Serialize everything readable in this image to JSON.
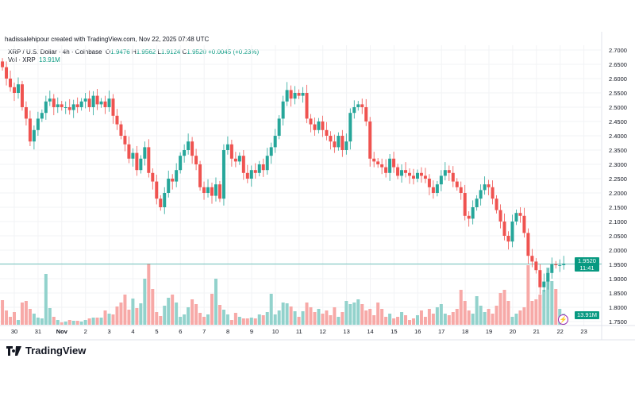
{
  "credit": "hadissalehipour created with TradingView.com, Nov 22, 2025 07:48 UTC",
  "legend": {
    "symbol": "XRP / U.S. Dollar · 4h · Coinbase",
    "o_label": "O",
    "o": "1.9476",
    "h_label": "H",
    "h": "1.9562",
    "l_label": "L",
    "l": "1.9124",
    "c_label": "C",
    "c": "1.9520",
    "change": "+0.0045 (+0.23%)"
  },
  "volume_legend": {
    "label": "Vol · XRP",
    "value": "13.91M"
  },
  "price_tag": {
    "price": "1.9520",
    "countdown": "11:41"
  },
  "volume_tag": "13.91M",
  "logo": "TradingView",
  "colors": {
    "up": "#26a69a",
    "down": "#ef5350",
    "vol_up": "#92d2cc",
    "vol_down": "#f7a9a7",
    "price_line": "#26a69a"
  },
  "chart_data": {
    "type": "candlestick",
    "interval": "4h",
    "y_ticks": [
      "2.7000",
      "2.6500",
      "2.6000",
      "2.5500",
      "2.5000",
      "2.4500",
      "2.4000",
      "2.3500",
      "2.3000",
      "2.2500",
      "2.2000",
      "2.1500",
      "2.1000",
      "2.0500",
      "2.0000",
      "1.9500",
      "1.9000",
      "1.8500",
      "1.8000",
      "1.7500"
    ],
    "ylim": [
      1.75,
      2.7
    ],
    "x_ticks": [
      "30",
      "31",
      "Nov",
      "2",
      "3",
      "4",
      "5",
      "6",
      "7",
      "8",
      "9",
      "10",
      "11",
      "12",
      "13",
      "14",
      "15",
      "16",
      "17",
      "18",
      "19",
      "20",
      "21",
      "22",
      "23"
    ],
    "first_open": 2.66,
    "closes": [
      2.64,
      2.6,
      2.57,
      2.55,
      2.58,
      2.5,
      2.46,
      2.38,
      2.42,
      2.46,
      2.48,
      2.52,
      2.53,
      2.5,
      2.51,
      2.5,
      2.5,
      2.49,
      2.51,
      2.5,
      2.52,
      2.53,
      2.5,
      2.54,
      2.51,
      2.52,
      2.5,
      2.53,
      2.47,
      2.44,
      2.4,
      2.37,
      2.32,
      2.34,
      2.28,
      2.32,
      2.36,
      2.27,
      2.24,
      2.18,
      2.15,
      2.2,
      2.25,
      2.24,
      2.28,
      2.33,
      2.35,
      2.38,
      2.33,
      2.3,
      2.22,
      2.2,
      2.22,
      2.19,
      2.23,
      2.18,
      2.35,
      2.37,
      2.32,
      2.31,
      2.33,
      2.27,
      2.25,
      2.28,
      2.27,
      2.3,
      2.28,
      2.33,
      2.36,
      2.4,
      2.46,
      2.52,
      2.56,
      2.53,
      2.55,
      2.54,
      2.55,
      2.46,
      2.44,
      2.42,
      2.45,
      2.42,
      2.4,
      2.38,
      2.36,
      2.4,
      2.35,
      2.38,
      2.48,
      2.5,
      2.51,
      2.5,
      2.45,
      2.32,
      2.31,
      2.3,
      2.29,
      2.27,
      2.32,
      2.29,
      2.26,
      2.28,
      2.27,
      2.26,
      2.25,
      2.27,
      2.26,
      2.25,
      2.22,
      2.2,
      2.23,
      2.26,
      2.28,
      2.27,
      2.24,
      2.22,
      2.2,
      2.12,
      2.11,
      2.15,
      2.18,
      2.21,
      2.23,
      2.22,
      2.18,
      2.14,
      2.1,
      2.05,
      2.03,
      2.1,
      2.13,
      2.12,
      2.06,
      1.98,
      1.96,
      1.93,
      1.87,
      1.89,
      1.92,
      1.95,
      1.9476,
      1.9476,
      1.952
    ],
    "volumes_m": [
      31,
      18,
      10,
      16,
      6,
      28,
      30,
      20,
      14,
      9,
      8,
      64,
      21,
      10,
      6,
      3,
      4,
      6,
      5,
      5,
      4,
      6,
      8,
      9,
      9,
      9,
      18,
      14,
      13,
      23,
      28,
      38,
      19,
      33,
      21,
      27,
      58,
      77,
      45,
      16,
      11,
      24,
      34,
      38,
      28,
      10,
      13,
      22,
      32,
      26,
      15,
      10,
      13,
      39,
      58,
      25,
      19,
      13,
      6,
      15,
      10,
      8,
      8,
      9,
      8,
      13,
      12,
      16,
      39,
      13,
      18,
      28,
      27,
      23,
      17,
      10,
      17,
      28,
      22,
      16,
      20,
      14,
      18,
      12,
      22,
      10,
      16,
      30,
      26,
      28,
      32,
      26,
      18,
      20,
      12,
      28,
      20,
      10,
      14,
      8,
      10,
      16,
      12,
      6,
      8,
      12,
      18,
      10,
      20,
      14,
      22,
      26,
      14,
      12,
      16,
      20,
      44,
      30,
      18,
      14,
      36,
      24,
      16,
      20,
      14,
      24,
      40,
      44,
      30,
      10,
      14,
      18,
      22,
      75,
      30,
      32,
      38,
      44,
      72,
      55,
      45,
      20,
      13.91
    ]
  }
}
